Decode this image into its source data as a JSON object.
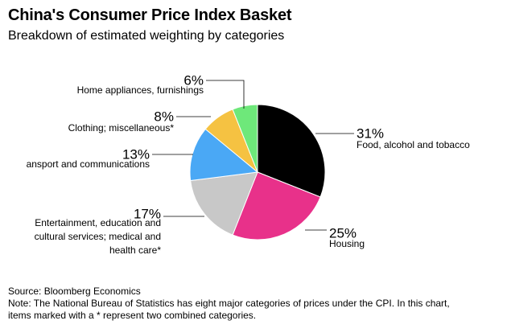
{
  "header": {
    "title": "China's Consumer Price Index Basket",
    "subtitle": "Breakdown of estimated weighting by categories"
  },
  "footer": {
    "source": "Source: Bloomberg Economics",
    "note_line1": "Note: The National Bureau of Statistics has eight major categories of prices under the CPI. In this chart,",
    "note_line2": "items marked with a * represent two combined categories."
  },
  "chart_data": {
    "type": "pie",
    "title": "China's Consumer Price Index Basket",
    "subtitle": "Breakdown of estimated weighting by categories",
    "slices": [
      {
        "label": "Food, alcohol and tobacco",
        "label_lines": [
          "Food, alcohol and tobacco"
        ],
        "value": 31,
        "value_label": "31%",
        "color": "#000000"
      },
      {
        "label": "Housing",
        "label_lines": [
          "Housing"
        ],
        "value": 25,
        "value_label": "25%",
        "color": "#e8318a"
      },
      {
        "label": "Entertainment, education and cultural services; medical and health care*",
        "label_lines": [
          "Entertainment, education and",
          "cultural services; medical and",
          "health care*"
        ],
        "value": 17,
        "value_label": "17%",
        "color": "#c8c8c8"
      },
      {
        "label": "ansport and communications",
        "label_lines": [
          "ansport and communications"
        ],
        "value": 13,
        "value_label": "13%",
        "color": "#4aa8f5"
      },
      {
        "label": "Clothing; miscellaneous*",
        "label_lines": [
          "Clothing; miscellaneous*"
        ],
        "value": 8,
        "value_label": "8%",
        "color": "#f5c242"
      },
      {
        "label": "Home appliances, furnishings",
        "label_lines": [
          "Home appliances, furnishings"
        ],
        "value": 6,
        "value_label": "6%",
        "color": "#6ee87a"
      }
    ]
  }
}
